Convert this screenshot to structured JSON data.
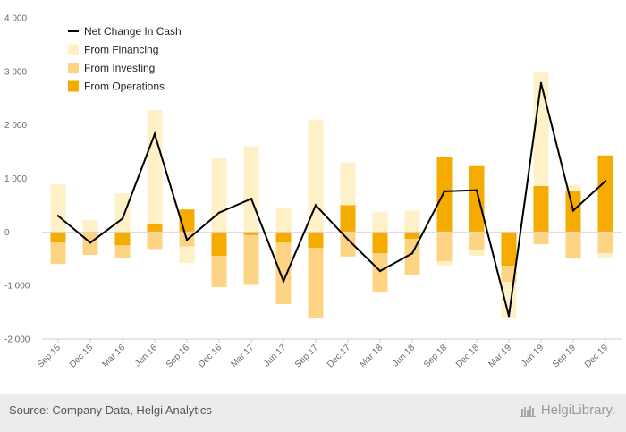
{
  "chart_data": {
    "type": "bar",
    "stacked": true,
    "categories": [
      "Sep 15",
      "Dec 15",
      "Mar 16",
      "Jun 16",
      "Sep 16",
      "Dec 16",
      "Mar 17",
      "Jun 17",
      "Sep 17",
      "Dec 17",
      "Mar 18",
      "Jun 18",
      "Sep 18",
      "Dec 18",
      "Mar 19",
      "Jun 19",
      "Sep 19",
      "Dec 19"
    ],
    "series": [
      {
        "name": "From Operations",
        "color": "#f5ab00",
        "values": [
          -200,
          -30,
          -250,
          150,
          420,
          -450,
          -60,
          -200,
          -300,
          500,
          -400,
          -130,
          1400,
          1230,
          -630,
          860,
          760,
          1430
        ]
      },
      {
        "name": "From Investing",
        "color": "#fdd484",
        "values": [
          -400,
          -400,
          -230,
          -320,
          -270,
          -580,
          -930,
          -1150,
          -1310,
          -460,
          -720,
          -670,
          -550,
          -340,
          -300,
          -230,
          -490,
          -400
        ]
      },
      {
        "name": "From Financing",
        "color": "#fef0c7",
        "values": [
          890,
          220,
          720,
          2130,
          -310,
          1380,
          1600,
          440,
          2100,
          800,
          370,
          400,
          -80,
          -110,
          -680,
          2140,
          120,
          -90
        ]
      }
    ],
    "line": {
      "name": "Net Change In Cash",
      "color": "#000000",
      "values": [
        300,
        -200,
        250,
        1830,
        -150,
        360,
        620,
        -920,
        500,
        -140,
        -730,
        -400,
        760,
        780,
        -1570,
        2780,
        400,
        950
      ]
    },
    "legend_order": [
      "Net Change In Cash",
      "From Financing",
      "From Investing",
      "From Operations"
    ],
    "yticks": [
      -2000,
      -1000,
      0,
      1000,
      2000,
      3000,
      4000
    ],
    "ytick_labels": [
      "-2 000",
      "-1 000",
      "0",
      "1 000",
      "2 000",
      "3 000",
      "4 000"
    ],
    "ylim": [
      -2000,
      4000
    ],
    "legend_position": "top-left",
    "grid": false
  },
  "footer": {
    "source": "Source: Company Data, Helgi Analytics",
    "brand": "HelgiLibrary."
  }
}
